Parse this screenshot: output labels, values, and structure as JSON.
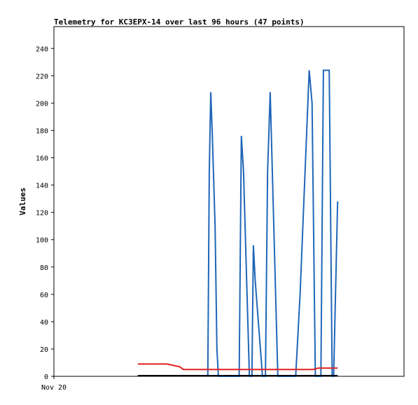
{
  "chart_data": {
    "type": "line",
    "title": "Telemetry for KC3EPX-14 over last 96 hours (47 points)",
    "xlabel": "",
    "ylabel": "Values",
    "x_tick_labels": [
      "Nov 20"
    ],
    "ylim": [
      0,
      256
    ],
    "y_ticks": [
      0,
      20,
      40,
      60,
      80,
      100,
      120,
      140,
      160,
      180,
      200,
      220,
      240
    ],
    "grid": false,
    "legend": "none",
    "x_range_hours": [
      0,
      96
    ],
    "series": [
      {
        "color": "#1f66b8",
        "x": [
          42.2,
          42.6,
          43.0,
          43.4,
          44.2,
          44.7,
          45.1,
          46.0,
          47.7,
          50.8,
          51.4,
          52.0,
          53.6,
          54.3,
          54.7,
          55.2,
          57.2,
          58.0,
          58.6,
          59.3,
          61.4,
          66.3,
          67.5,
          70.0,
          70.8,
          71.7,
          73.2,
          73.9,
          74.6,
          75.5,
          76.3,
          76.7,
          77.8
        ],
        "y": [
          0,
          150,
          208,
          180,
          110,
          20,
          0,
          0,
          0,
          0,
          176,
          150,
          0,
          0,
          96,
          70,
          0,
          0,
          150,
          208,
          0,
          0,
          60,
          224,
          200,
          0,
          0,
          224,
          224,
          224,
          0,
          0,
          128
        ]
      },
      {
        "color": "#e02020",
        "x": [
          23.0,
          31.0,
          34.5,
          35.5,
          71.0,
          72.5,
          74.0,
          77.8
        ],
        "y": [
          9,
          9,
          7,
          5,
          5,
          6,
          6,
          6
        ]
      },
      {
        "color": "#000000",
        "x": [
          23.0,
          77.8
        ],
        "y": [
          0.5,
          0.5
        ]
      }
    ]
  }
}
